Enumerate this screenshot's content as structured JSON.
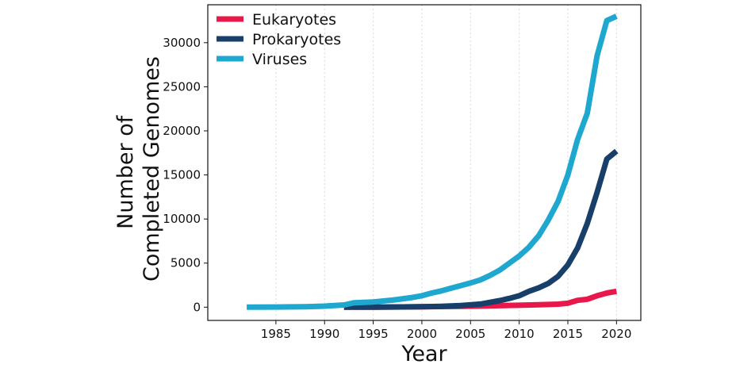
{
  "chart_data": {
    "type": "line",
    "title": "",
    "xlabel": "Year",
    "ylabel_lines": [
      "Number of",
      "Completed Genomes"
    ],
    "xlim": [
      1978,
      2022.5
    ],
    "ylim": [
      -1500,
      34300
    ],
    "x_ticks": [
      1985,
      1990,
      1995,
      2000,
      2005,
      2010,
      2015,
      2020
    ],
    "y_ticks": [
      0,
      5000,
      10000,
      15000,
      20000,
      25000,
      30000
    ],
    "grid": "vertical dotted",
    "legend": "top-left",
    "series": [
      {
        "name": "Eukaryotes",
        "color": "#e8184a",
        "x": [
          1992,
          1995,
          1998,
          2000,
          2002,
          2004,
          2006,
          2008,
          2010,
          2012,
          2014,
          2015,
          2016,
          2017,
          2018,
          2019,
          2020
        ],
        "y": [
          0,
          10,
          30,
          50,
          70,
          100,
          130,
          170,
          220,
          280,
          340,
          450,
          780,
          900,
          1300,
          1600,
          1800
        ]
      },
      {
        "name": "Prokaryotes",
        "color": "#173f6a",
        "x": [
          1992,
          1995,
          1998,
          2000,
          2002,
          2004,
          2006,
          2008,
          2009,
          2010,
          2011,
          2012,
          2013,
          2014,
          2015,
          2016,
          2017,
          2018,
          2019,
          2020
        ],
        "y": [
          0,
          10,
          30,
          60,
          100,
          180,
          350,
          750,
          1000,
          1300,
          1800,
          2200,
          2700,
          3500,
          4800,
          6700,
          9500,
          13000,
          16800,
          17700
        ]
      },
      {
        "name": "Viruses",
        "color": "#1ea7cf",
        "x": [
          1982,
          1985,
          1988,
          1990,
          1992,
          1993,
          1995,
          1997,
          1999,
          2000,
          2001,
          2002,
          2003,
          2004,
          2005,
          2006,
          2007,
          2008,
          2009,
          2010,
          2011,
          2012,
          2013,
          2014,
          2015,
          2016,
          2017,
          2018,
          2019,
          2020
        ],
        "y": [
          0,
          20,
          60,
          120,
          250,
          500,
          600,
          800,
          1100,
          1300,
          1600,
          1850,
          2150,
          2450,
          2750,
          3100,
          3600,
          4200,
          5000,
          5800,
          6800,
          8100,
          9900,
          12000,
          15000,
          19000,
          22000,
          28500,
          32500,
          33000
        ]
      }
    ]
  }
}
